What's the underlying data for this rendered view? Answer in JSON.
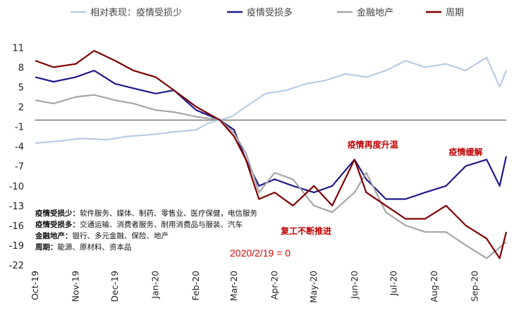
{
  "chart_data": {
    "type": "line",
    "title": "",
    "xlabel": "",
    "ylabel": "",
    "ylim": [
      -22,
      12
    ],
    "yticks": [
      11,
      8,
      5,
      2,
      -1,
      -4,
      -7,
      -10,
      -13,
      -16,
      -19,
      -22
    ],
    "x_date_range": [
      "2019-10-01",
      "2020-09-25"
    ],
    "xtick_labels": [
      "Oct-19",
      "Nov-19",
      "Dec-19",
      "Jan-20",
      "Feb-20",
      "Mar-20",
      "Apr-20",
      "May-20",
      "Jun-20",
      "Jul-20",
      "Aug-20",
      "Sep-20"
    ],
    "xtick_dates": [
      "2019-10-01",
      "2019-11-01",
      "2019-12-01",
      "2020-01-01",
      "2020-02-01",
      "2020-03-01",
      "2020-04-01",
      "2020-05-01",
      "2020-06-01",
      "2020-07-01",
      "2020-08-01",
      "2020-09-01"
    ],
    "legend_position": "top",
    "series": [
      {
        "name": "相对表现：疫情受损少",
        "color": "#b8cce4",
        "points": [
          [
            "2019-10-01",
            -3.5
          ],
          [
            "2019-10-20",
            -3.2
          ],
          [
            "2019-11-05",
            -2.8
          ],
          [
            "2019-11-25",
            -3.0
          ],
          [
            "2019-12-10",
            -2.5
          ],
          [
            "2019-12-30",
            -2.2
          ],
          [
            "2020-01-15",
            -1.8
          ],
          [
            "2020-02-01",
            -1.5
          ],
          [
            "2020-02-10",
            -0.5
          ],
          [
            "2020-02-19",
            0
          ],
          [
            "2020-02-28",
            0.5
          ],
          [
            "2020-03-10",
            2
          ],
          [
            "2020-03-25",
            4
          ],
          [
            "2020-04-10",
            4.5
          ],
          [
            "2020-04-25",
            5.5
          ],
          [
            "2020-05-10",
            6
          ],
          [
            "2020-05-25",
            7
          ],
          [
            "2020-06-10",
            6.5
          ],
          [
            "2020-06-25",
            7.5
          ],
          [
            "2020-07-10",
            9
          ],
          [
            "2020-07-25",
            8
          ],
          [
            "2020-08-10",
            8.5
          ],
          [
            "2020-08-25",
            7.5
          ],
          [
            "2020-09-10",
            9.5
          ],
          [
            "2020-09-20",
            5
          ],
          [
            "2020-09-25",
            7.5
          ]
        ]
      },
      {
        "name": "疫情受损多",
        "color": "#1f1a8a",
        "points": [
          [
            "2019-10-01",
            6.5
          ],
          [
            "2019-10-15",
            5.8
          ],
          [
            "2019-11-01",
            6.5
          ],
          [
            "2019-11-15",
            7.5
          ],
          [
            "2019-12-01",
            5.5
          ],
          [
            "2019-12-15",
            4.8
          ],
          [
            "2020-01-01",
            4.0
          ],
          [
            "2020-01-15",
            4.5
          ],
          [
            "2020-02-01",
            1.5
          ],
          [
            "2020-02-19",
            0
          ],
          [
            "2020-03-01",
            -1.5
          ],
          [
            "2020-03-10",
            -6
          ],
          [
            "2020-03-20",
            -10
          ],
          [
            "2020-04-01",
            -9
          ],
          [
            "2020-04-15",
            -10
          ],
          [
            "2020-05-01",
            -11
          ],
          [
            "2020-05-15",
            -10
          ],
          [
            "2020-06-01",
            -6
          ],
          [
            "2020-06-10",
            -9
          ],
          [
            "2020-06-25",
            -12
          ],
          [
            "2020-07-10",
            -12
          ],
          [
            "2020-07-25",
            -11
          ],
          [
            "2020-08-10",
            -10
          ],
          [
            "2020-08-25",
            -7
          ],
          [
            "2020-09-10",
            -6
          ],
          [
            "2020-09-20",
            -10
          ],
          [
            "2020-09-25",
            -5.5
          ]
        ]
      },
      {
        "name": "金融地产",
        "color": "#a6a6a6",
        "points": [
          [
            "2019-10-01",
            3
          ],
          [
            "2019-10-15",
            2.5
          ],
          [
            "2019-11-01",
            3.5
          ],
          [
            "2019-11-15",
            3.8
          ],
          [
            "2019-12-01",
            3.0
          ],
          [
            "2019-12-15",
            2.5
          ],
          [
            "2020-01-01",
            1.5
          ],
          [
            "2020-01-15",
            1.2
          ],
          [
            "2020-02-01",
            0.5
          ],
          [
            "2020-02-19",
            0
          ],
          [
            "2020-03-01",
            -2
          ],
          [
            "2020-03-10",
            -5
          ],
          [
            "2020-03-20",
            -11
          ],
          [
            "2020-04-01",
            -8
          ],
          [
            "2020-04-15",
            -9
          ],
          [
            "2020-05-01",
            -13
          ],
          [
            "2020-05-15",
            -14
          ],
          [
            "2020-06-01",
            -11
          ],
          [
            "2020-06-10",
            -8
          ],
          [
            "2020-06-25",
            -14
          ],
          [
            "2020-07-10",
            -16
          ],
          [
            "2020-07-25",
            -17
          ],
          [
            "2020-08-10",
            -17
          ],
          [
            "2020-08-25",
            -19
          ],
          [
            "2020-09-10",
            -21
          ],
          [
            "2020-09-25",
            -18.5
          ]
        ]
      },
      {
        "name": "周期",
        "color": "#7f0000",
        "points": [
          [
            "2019-10-01",
            9
          ],
          [
            "2019-10-15",
            8
          ],
          [
            "2019-11-01",
            8.5
          ],
          [
            "2019-11-15",
            10.5
          ],
          [
            "2019-12-01",
            9
          ],
          [
            "2019-12-15",
            7.5
          ],
          [
            "2020-01-01",
            6.5
          ],
          [
            "2020-01-15",
            4.5
          ],
          [
            "2020-02-01",
            2
          ],
          [
            "2020-02-19",
            0
          ],
          [
            "2020-03-01",
            -2.5
          ],
          [
            "2020-03-10",
            -6
          ],
          [
            "2020-03-20",
            -12
          ],
          [
            "2020-04-01",
            -11
          ],
          [
            "2020-04-15",
            -13
          ],
          [
            "2020-05-01",
            -10
          ],
          [
            "2020-05-15",
            -13
          ],
          [
            "2020-06-01",
            -6
          ],
          [
            "2020-06-10",
            -11
          ],
          [
            "2020-06-25",
            -13
          ],
          [
            "2020-07-10",
            -15
          ],
          [
            "2020-07-25",
            -15
          ],
          [
            "2020-08-10",
            -13
          ],
          [
            "2020-08-25",
            -16
          ],
          [
            "2020-09-10",
            -18
          ],
          [
            "2020-09-20",
            -21
          ],
          [
            "2020-09-25",
            -17
          ]
        ]
      }
    ],
    "annotations": [
      {
        "text": "疫情再度升温",
        "date": "2020-06-15",
        "y": -4.2
      },
      {
        "text": "疫情缓解",
        "date": "2020-08-25",
        "y": -5.3
      },
      {
        "text": "复工不断推进",
        "date": "2020-04-25",
        "y": -17.3
      }
    ],
    "baseline_label": "2020/2/19 = 0",
    "notes": [
      {
        "label": "疫情受损少：",
        "text": "软件服务、媒体、制药、零售业、医疗保健，电信服务"
      },
      {
        "label": "疫情受损多：",
        "text": "交通运输、消费者服务、耐用消费品与服装、汽车"
      },
      {
        "label": "金融地产：",
        "text": "银行、多元金融、保险、地产"
      },
      {
        "label": "周期：",
        "text": "能源、原材料、资本品"
      }
    ]
  }
}
